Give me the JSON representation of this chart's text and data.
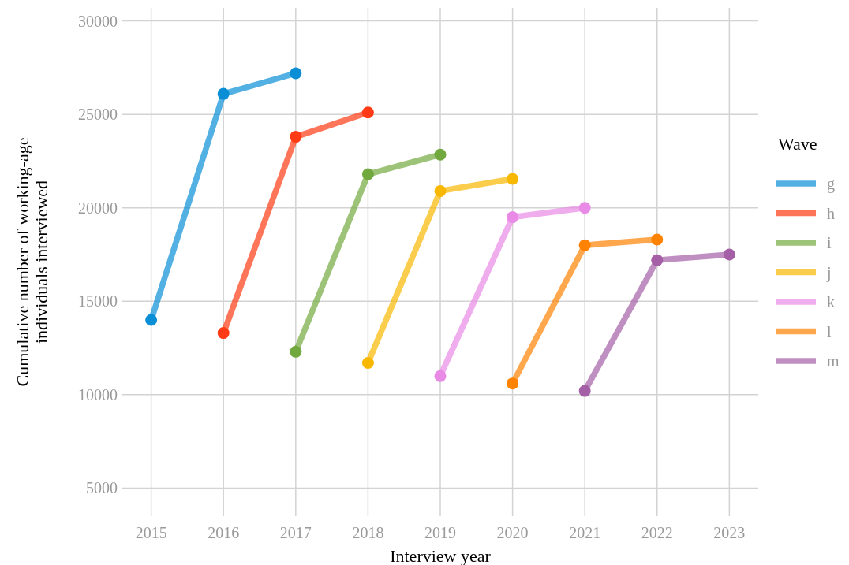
{
  "chart_data": {
    "type": "line",
    "xlabel": "Interview year",
    "ylabel": "Cumulative number of working-age individuals interviewed",
    "legend_title": "Wave",
    "legend": "right",
    "grid": true,
    "marker": "circle",
    "line_style": "solid",
    "xlim": [
      2014.6,
      2023.4
    ],
    "xticks": [
      2015,
      2016,
      2017,
      2018,
      2019,
      2020,
      2021,
      2022,
      2023
    ],
    "ylim": [
      3500,
      30700
    ],
    "yticks": [
      5000,
      10000,
      15000,
      20000,
      25000,
      30000
    ],
    "series": [
      {
        "name": "g",
        "color": "#0a8fd6",
        "x": [
          2015,
          2016,
          2017
        ],
        "values": [
          14000,
          26100,
          27200
        ]
      },
      {
        "name": "h",
        "color": "#ff3a14",
        "x": [
          2016,
          2017,
          2018
        ],
        "values": [
          13300,
          23800,
          25100
        ]
      },
      {
        "name": "i",
        "color": "#72a93e",
        "x": [
          2017,
          2018,
          2019
        ],
        "values": [
          12300,
          21800,
          22850
        ]
      },
      {
        "name": "j",
        "color": "#f9b800",
        "x": [
          2018,
          2019,
          2020
        ],
        "values": [
          11700,
          20900,
          21550
        ]
      },
      {
        "name": "k",
        "color": "#e98ae6",
        "x": [
          2019,
          2020,
          2021
        ],
        "values": [
          11000,
          19500,
          20000
        ]
      },
      {
        "name": "l",
        "color": "#ff8200",
        "x": [
          2020,
          2021,
          2022
        ],
        "values": [
          10600,
          18000,
          18300
        ]
      },
      {
        "name": "m",
        "color": "#a45fa6",
        "x": [
          2021,
          2022,
          2023
        ],
        "values": [
          10200,
          17200,
          17500
        ]
      }
    ]
  }
}
